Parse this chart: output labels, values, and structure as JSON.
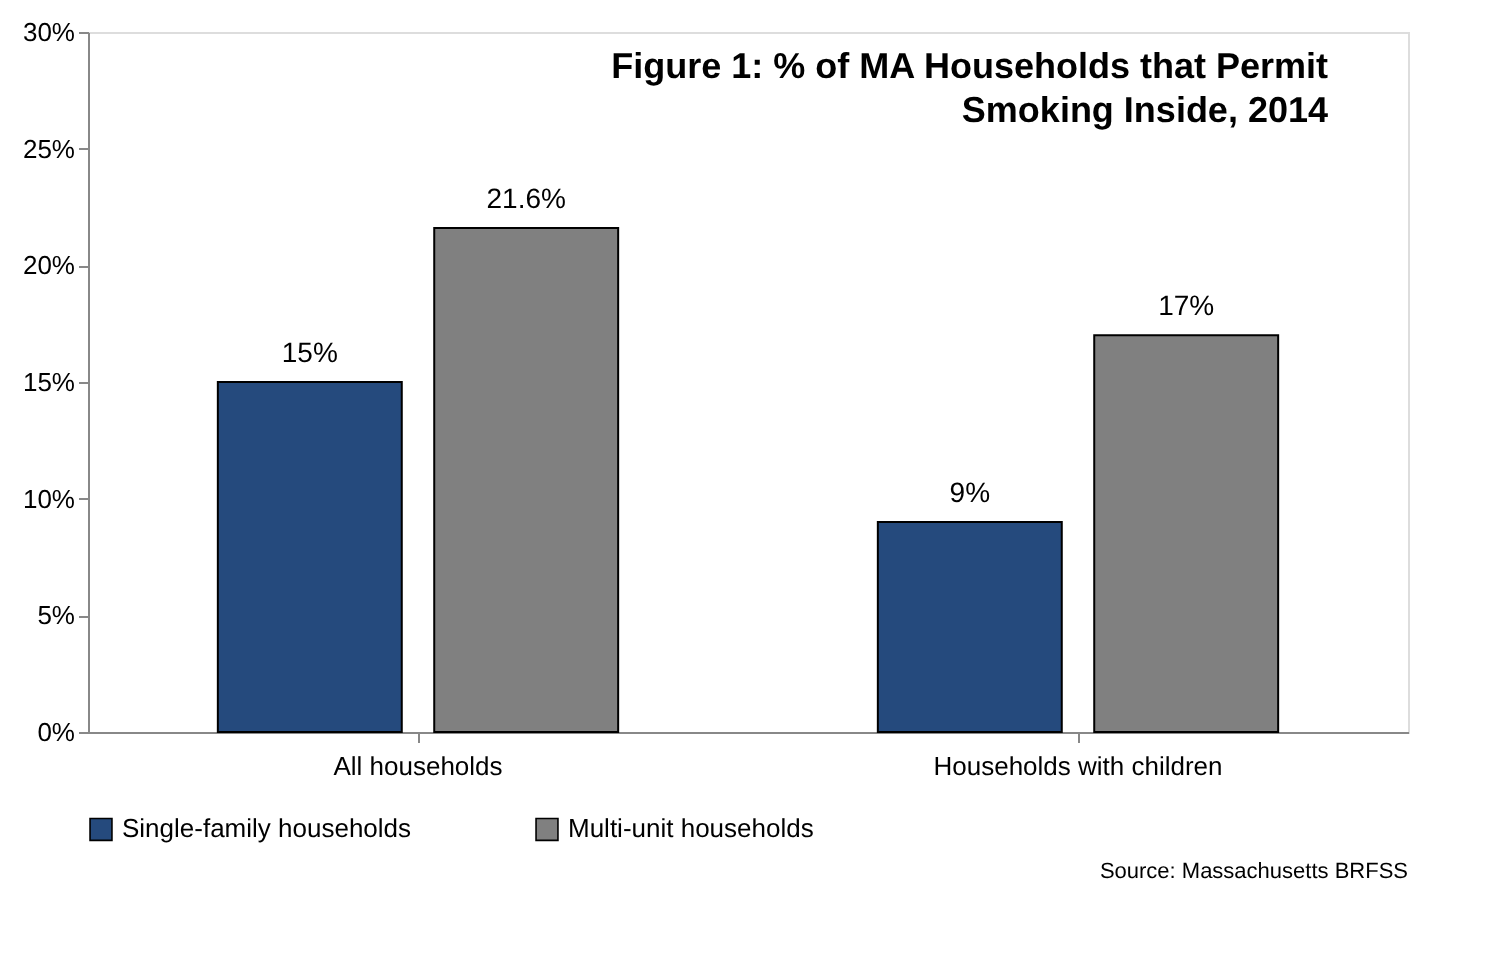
{
  "chart_data": {
    "type": "bar",
    "title": "Figure 1: % of MA Households that Permit Smoking Inside, 2014",
    "categories": [
      "All households",
      "Households with children"
    ],
    "series": [
      {
        "name": "Single-family households",
        "color": "#254a7d",
        "values": [
          15,
          9
        ],
        "value_labels": [
          "15%",
          "9%"
        ]
      },
      {
        "name": "Multi-unit households",
        "color": "#808080",
        "values": [
          21.6,
          17
        ],
        "value_labels": [
          "21.6%",
          "17%"
        ]
      }
    ],
    "ylim": [
      0,
      30
    ],
    "yticks": [
      {
        "value": 0,
        "label": "0%"
      },
      {
        "value": 5,
        "label": "5%"
      },
      {
        "value": 10,
        "label": "10%"
      },
      {
        "value": 15,
        "label": "15%"
      },
      {
        "value": 20,
        "label": "20%"
      },
      {
        "value": 25,
        "label": "25%"
      },
      {
        "value": 30,
        "label": "30%"
      }
    ],
    "grid": false,
    "legend": "bottom",
    "annotations": [
      "Source: Massachusetts BRFSS"
    ]
  }
}
